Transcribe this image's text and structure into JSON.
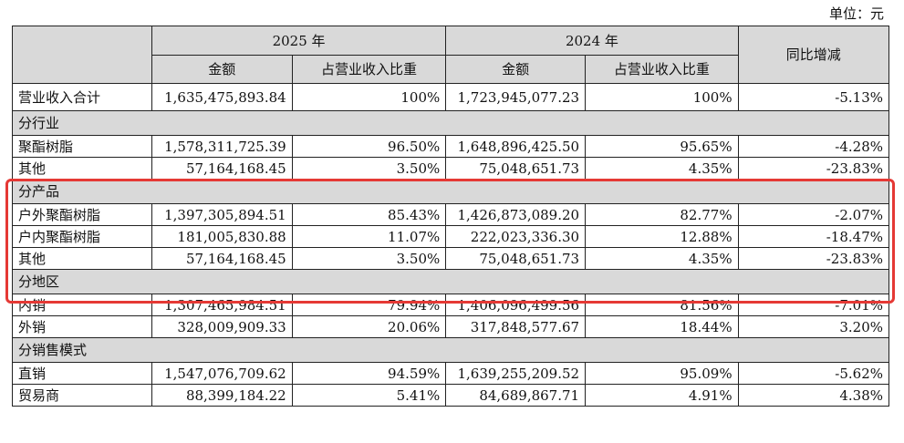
{
  "unit_label": "单位：元",
  "header": {
    "year_2025": "2025 年",
    "year_2024": "2024 年",
    "yoy": "同比增减",
    "amount": "金额",
    "ratio": "占营业收入比重"
  },
  "total": {
    "label": "营业收入合计",
    "amount_2025": "1,635,475,893.84",
    "ratio_2025": "100%",
    "amount_2024": "1,723,945,077.23",
    "ratio_2024": "100%",
    "yoy": "-5.13%"
  },
  "sections": [
    {
      "title": "分行业",
      "rows": [
        {
          "label": "聚酯树脂",
          "amount_2025": "1,578,311,725.39",
          "ratio_2025": "96.50%",
          "amount_2024": "1,648,896,425.50",
          "ratio_2024": "95.65%",
          "yoy": "-4.28%"
        },
        {
          "label": "其他",
          "amount_2025": "57,164,168.45",
          "ratio_2025": "3.50%",
          "amount_2024": "75,048,651.73",
          "ratio_2024": "4.35%",
          "yoy": "-23.83%"
        }
      ]
    },
    {
      "title": "分产品",
      "rows": [
        {
          "label": "户外聚酯树脂",
          "amount_2025": "1,397,305,894.51",
          "ratio_2025": "85.43%",
          "amount_2024": "1,426,873,089.20",
          "ratio_2024": "82.77%",
          "yoy": "-2.07%"
        },
        {
          "label": "户内聚酯树脂",
          "amount_2025": "181,005,830.88",
          "ratio_2025": "11.07%",
          "amount_2024": "222,023,336.30",
          "ratio_2024": "12.88%",
          "yoy": "-18.47%"
        },
        {
          "label": "其他",
          "amount_2025": "57,164,168.45",
          "ratio_2025": "3.50%",
          "amount_2024": "75,048,651.73",
          "ratio_2024": "4.35%",
          "yoy": "-23.83%"
        }
      ]
    },
    {
      "title": "分地区",
      "rows": [
        {
          "label": "内销",
          "amount_2025": "1,307,465,984.51",
          "ratio_2025": "79.94%",
          "amount_2024": "1,406,096,499.56",
          "ratio_2024": "81.56%",
          "yoy": "-7.01%"
        },
        {
          "label": "外销",
          "amount_2025": "328,009,909.33",
          "ratio_2025": "20.06%",
          "amount_2024": "317,848,577.67",
          "ratio_2024": "18.44%",
          "yoy": "3.20%"
        }
      ]
    },
    {
      "title": "分销售模式",
      "rows": [
        {
          "label": "直销",
          "amount_2025": "1,547,076,709.62",
          "ratio_2025": "94.59%",
          "amount_2024": "1,639,255,209.52",
          "ratio_2024": "95.09%",
          "yoy": "-5.62%"
        },
        {
          "label": "贸易商",
          "amount_2025": "88,399,184.22",
          "ratio_2025": "5.41%",
          "amount_2024": "84,689,867.71",
          "ratio_2024": "4.91%",
          "yoy": "4.38%"
        }
      ]
    }
  ],
  "highlight_color": "#e53935"
}
